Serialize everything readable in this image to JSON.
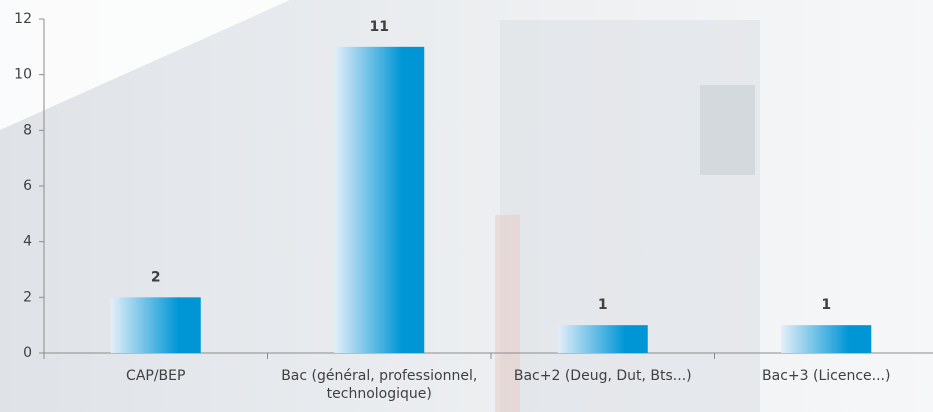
{
  "chart_data": {
    "type": "bar",
    "categories": [
      "CAP/BEP",
      "Bac (général, professionnel, technologique)",
      "Bac+2 (Deug, Dut, Bts...)",
      "Bac+3 (Licence...)"
    ],
    "values": [
      2,
      11,
      1,
      1
    ],
    "color": "#0096d6",
    "ylim": [
      0,
      12
    ],
    "yticks": [
      0,
      2,
      4,
      6,
      8,
      10,
      12
    ],
    "grid": false
  }
}
